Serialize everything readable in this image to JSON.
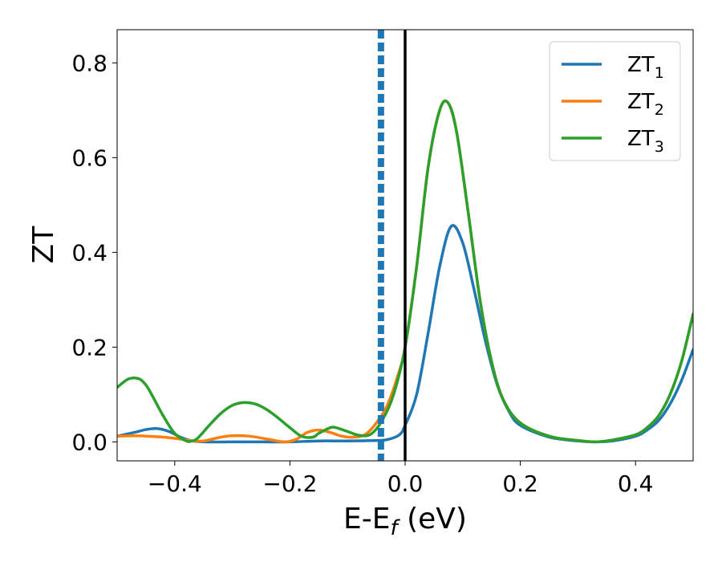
{
  "chart_data": {
    "type": "line",
    "xlabel": "E-E",
    "xlabel_sub": "f",
    "xlabel_unit": " (eV)",
    "ylabel": "ZT",
    "xlim": [
      -0.5,
      0.5
    ],
    "ylim": [
      -0.04,
      0.87
    ],
    "xticks": [
      -0.4,
      -0.2,
      0.0,
      0.2,
      0.4
    ],
    "xtick_labels": [
      "−0.4",
      "−0.2",
      "0.0",
      "0.2",
      "0.4"
    ],
    "yticks": [
      0.0,
      0.2,
      0.4,
      0.6,
      0.8
    ],
    "ytick_labels": [
      "0.0",
      "0.2",
      "0.4",
      "0.6",
      "0.8"
    ],
    "grid": false,
    "legend_position": "top-right",
    "series": [
      {
        "name": "ZT",
        "name_sub": "1",
        "color": "#1f77b4",
        "x": [
          -0.5,
          -0.47,
          -0.45,
          -0.43,
          -0.41,
          -0.39,
          -0.37,
          -0.35,
          -0.3,
          -0.25,
          -0.2,
          -0.15,
          -0.1,
          -0.05,
          -0.03,
          -0.01,
          0.0,
          0.02,
          0.04,
          0.06,
          0.08,
          0.1,
          0.12,
          0.14,
          0.16,
          0.18,
          0.2,
          0.25,
          0.3,
          0.33,
          0.36,
          0.4,
          0.42,
          0.44,
          0.46,
          0.48,
          0.5
        ],
        "y": [
          0.012,
          0.02,
          0.026,
          0.028,
          0.022,
          0.01,
          0.002,
          0.0,
          0.0,
          0.0,
          0.0,
          0.002,
          0.002,
          0.003,
          0.005,
          0.015,
          0.035,
          0.1,
          0.23,
          0.37,
          0.455,
          0.42,
          0.32,
          0.21,
          0.12,
          0.065,
          0.035,
          0.01,
          0.002,
          0.0,
          0.002,
          0.012,
          0.025,
          0.045,
          0.08,
          0.13,
          0.195
        ]
      },
      {
        "name": "ZT",
        "name_sub": "2",
        "color": "#ff7f0e",
        "x": [
          -0.5,
          -0.47,
          -0.45,
          -0.42,
          -0.39,
          -0.37,
          -0.35,
          -0.32,
          -0.3,
          -0.27,
          -0.24,
          -0.21,
          -0.19,
          -0.17,
          -0.15,
          -0.13,
          -0.11,
          -0.09,
          -0.07,
          -0.05,
          -0.03,
          -0.01,
          0.0,
          0.02,
          0.04,
          0.06,
          0.075,
          0.09,
          0.11,
          0.13,
          0.15,
          0.17,
          0.2,
          0.25,
          0.3,
          0.33,
          0.36,
          0.4,
          0.42,
          0.44,
          0.46,
          0.48,
          0.5
        ],
        "y": [
          0.012,
          0.013,
          0.012,
          0.01,
          0.006,
          0.002,
          0.002,
          0.01,
          0.013,
          0.012,
          0.006,
          0.0,
          0.005,
          0.02,
          0.025,
          0.02,
          0.012,
          0.01,
          0.015,
          0.04,
          0.08,
          0.15,
          0.2,
          0.37,
          0.58,
          0.7,
          0.715,
          0.65,
          0.48,
          0.3,
          0.17,
          0.09,
          0.04,
          0.012,
          0.003,
          0.0,
          0.004,
          0.015,
          0.03,
          0.055,
          0.1,
          0.17,
          0.27
        ]
      },
      {
        "name": "ZT",
        "name_sub": "3",
        "color": "#2ca02c",
        "x": [
          -0.5,
          -0.49,
          -0.48,
          -0.47,
          -0.46,
          -0.45,
          -0.44,
          -0.42,
          -0.4,
          -0.38,
          -0.37,
          -0.36,
          -0.34,
          -0.32,
          -0.3,
          -0.28,
          -0.26,
          -0.24,
          -0.22,
          -0.2,
          -0.18,
          -0.16,
          -0.15,
          -0.13,
          -0.12,
          -0.1,
          -0.08,
          -0.06,
          -0.04,
          -0.02,
          0.0,
          0.02,
          0.04,
          0.06,
          0.075,
          0.09,
          0.11,
          0.13,
          0.15,
          0.17,
          0.2,
          0.25,
          0.3,
          0.33,
          0.36,
          0.4,
          0.42,
          0.44,
          0.46,
          0.48,
          0.5
        ],
        "y": [
          0.115,
          0.125,
          0.133,
          0.135,
          0.132,
          0.12,
          0.1,
          0.055,
          0.018,
          0.002,
          0.002,
          0.008,
          0.035,
          0.06,
          0.077,
          0.083,
          0.08,
          0.068,
          0.05,
          0.03,
          0.012,
          0.01,
          0.018,
          0.03,
          0.03,
          0.022,
          0.014,
          0.016,
          0.045,
          0.1,
          0.2,
          0.37,
          0.58,
          0.7,
          0.715,
          0.65,
          0.48,
          0.3,
          0.17,
          0.09,
          0.04,
          0.012,
          0.003,
          0.0,
          0.004,
          0.015,
          0.03,
          0.055,
          0.1,
          0.17,
          0.27
        ]
      }
    ],
    "vlines": [
      {
        "x": -0.042,
        "style": "dashed",
        "color": "#1f77b4"
      },
      {
        "x": 0.0,
        "style": "solid",
        "color": "#000000"
      }
    ]
  }
}
